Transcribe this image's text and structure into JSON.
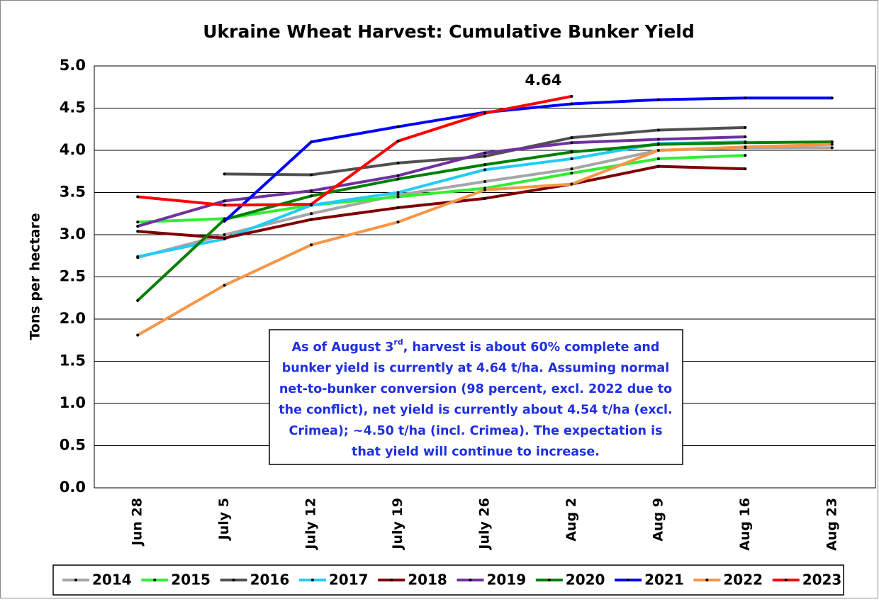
{
  "chart_data": {
    "type": "line",
    "title": "Ukraine Wheat Harvest: Cumulative Bunker Yield",
    "ylabel": "Tons per hectare",
    "categories": [
      "Jun 28",
      "July 5",
      "July 12",
      "July 19",
      "July 26",
      "Aug 2",
      "Aug 9",
      "Aug 16",
      "Aug 23"
    ],
    "ylim": [
      0,
      5
    ],
    "yticks": [
      {
        "value": 0,
        "label": "0.0"
      },
      0.5,
      {
        "value": 1,
        "label": "1.0"
      },
      1.5,
      {
        "value": 2,
        "label": "2.0"
      },
      2.5,
      {
        "value": 3,
        "label": "3.0"
      },
      3.5,
      {
        "value": 4,
        "label": "4.0"
      },
      4.5,
      {
        "value": 5,
        "label": "5.0"
      }
    ],
    "grid": true,
    "legend": "bottom",
    "series": [
      {
        "name": "2014",
        "color": "#a6a6a6",
        "values": [
          2.73,
          3.0,
          3.25,
          3.47,
          3.63,
          3.78,
          4.0,
          4.03,
          4.03
        ]
      },
      {
        "name": "2015",
        "color": "#33ee33",
        "values": [
          3.15,
          3.19,
          3.35,
          3.45,
          3.55,
          3.73,
          3.9,
          3.94,
          null
        ]
      },
      {
        "name": "2016",
        "color": "#505050",
        "values": [
          null,
          3.72,
          3.71,
          3.85,
          3.93,
          4.15,
          4.24,
          4.27,
          null
        ]
      },
      {
        "name": "2017",
        "color": "#22ccf5",
        "values": [
          2.74,
          2.95,
          3.35,
          3.5,
          3.77,
          3.9,
          4.08,
          4.1,
          null
        ]
      },
      {
        "name": "2018",
        "color": "#800000",
        "values": [
          3.04,
          2.96,
          3.18,
          3.32,
          3.43,
          3.6,
          3.81,
          3.78,
          null
        ]
      },
      {
        "name": "2019",
        "color": "#7030a0",
        "values": [
          3.1,
          3.4,
          3.52,
          3.7,
          3.97,
          4.09,
          4.13,
          4.16,
          null
        ]
      },
      {
        "name": "2020",
        "color": "#008000",
        "values": [
          2.22,
          3.18,
          3.46,
          3.66,
          3.83,
          3.98,
          4.07,
          4.09,
          4.1
        ]
      },
      {
        "name": "2021",
        "color": "#0000ff",
        "values": [
          null,
          3.16,
          4.1,
          4.28,
          4.45,
          4.55,
          4.6,
          4.62,
          4.62
        ]
      },
      {
        "name": "2022",
        "color": "#f79646",
        "values": [
          1.81,
          2.4,
          2.88,
          3.15,
          3.53,
          3.6,
          4.0,
          4.04,
          4.07
        ]
      },
      {
        "name": "2023",
        "color": "#ff0000",
        "values": [
          3.45,
          3.35,
          3.36,
          4.11,
          4.44,
          4.64,
          null,
          null,
          null
        ],
        "value_labels": [
          null,
          null,
          null,
          null,
          null,
          "4.64",
          null,
          null,
          null
        ]
      }
    ],
    "note": {
      "first": [
        "As of August 3",
        "rd",
        ", harvest is about 60% complete and"
      ],
      "lines": [
        "bunker yield is currently at 4.64 t/ha. Assuming normal",
        "net-to-bunker conversion (98 percent, excl. 2022 due to",
        "the conflict), net yield is currently about 4.54 t/ha (excl.",
        "Crimea); ~4.50 t/ha (incl. Crimea). The expectation is",
        "that yield will continue to increase."
      ]
    }
  }
}
